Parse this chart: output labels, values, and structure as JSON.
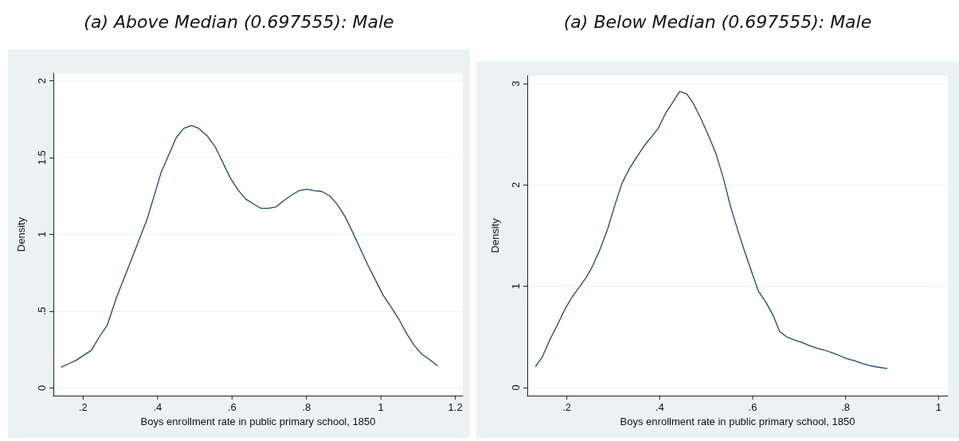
{
  "chart_data": [
    {
      "type": "line",
      "title": "(a) Above Median (0.697555): Male",
      "xlabel": "Boys enrollment rate in public primary school, 1850",
      "ylabel": "Density",
      "grid": "y",
      "marker": "none",
      "line_style": "solid",
      "xlim": [
        0.12,
        1.22
      ],
      "ylim": [
        -0.05,
        2.05
      ],
      "xticks": [
        {
          "value": 0.2,
          "label": ".2"
        },
        {
          "value": 0.4,
          "label": ".4"
        },
        {
          "value": 0.6,
          "label": ".6"
        },
        {
          "value": 0.8,
          "label": ".8"
        },
        {
          "value": 1,
          "label": "1"
        },
        {
          "value": 1.2,
          "label": "1.2"
        }
      ],
      "yticks": [
        0,
        {
          "value": 0.5,
          "label": ".5"
        },
        1,
        1.5,
        2
      ],
      "series": [
        {
          "color": "#1a476f",
          "x": [
            0.142,
            0.16,
            0.181,
            0.222,
            0.244,
            0.265,
            0.289,
            0.331,
            0.372,
            0.409,
            0.45,
            0.47,
            0.491,
            0.511,
            0.534,
            0.555,
            0.575,
            0.595,
            0.616,
            0.637,
            0.657,
            0.678,
            0.698,
            0.719,
            0.739,
            0.76,
            0.78,
            0.801,
            0.821,
            0.841,
            0.863,
            0.883,
            0.904,
            0.924,
            0.945,
            0.965,
            0.986,
            1.007,
            1.028,
            1.049,
            1.069,
            1.09,
            1.11,
            1.131,
            1.152
          ],
          "values": [
            0.136,
            0.156,
            0.18,
            0.245,
            0.335,
            0.41,
            0.585,
            0.845,
            1.1,
            1.4,
            1.63,
            1.69,
            1.71,
            1.69,
            1.64,
            1.57,
            1.47,
            1.37,
            1.29,
            1.23,
            1.2,
            1.17,
            1.17,
            1.18,
            1.22,
            1.255,
            1.285,
            1.295,
            1.285,
            1.28,
            1.25,
            1.195,
            1.115,
            1.015,
            0.905,
            0.8,
            0.7,
            0.6,
            0.525,
            0.445,
            0.355,
            0.275,
            0.22,
            0.185,
            0.145
          ]
        }
      ]
    },
    {
      "type": "line",
      "title": "(a) Below Median (0.697555): Male",
      "xlabel": "Boys enrollment rate in public primary school, 1850",
      "ylabel": "Density",
      "grid": "y",
      "marker": "none",
      "line_style": "solid",
      "xlim": [
        0.115,
        1.02
      ],
      "ylim": [
        -0.08,
        3.08
      ],
      "xticks": [
        {
          "value": 0.2,
          "label": ".2"
        },
        {
          "value": 0.4,
          "label": ".4"
        },
        {
          "value": 0.6,
          "label": ".6"
        },
        {
          "value": 0.8,
          "label": ".8"
        },
        {
          "value": 1,
          "label": "1"
        }
      ],
      "yticks": [
        0,
        1,
        2,
        3
      ],
      "series": [
        {
          "color": "#1a476f",
          "x": [
            0.133,
            0.147,
            0.163,
            0.179,
            0.195,
            0.21,
            0.226,
            0.242,
            0.256,
            0.272,
            0.288,
            0.304,
            0.319,
            0.335,
            0.351,
            0.367,
            0.383,
            0.397,
            0.413,
            0.429,
            0.443,
            0.458,
            0.472,
            0.49,
            0.506,
            0.521,
            0.537,
            0.552,
            0.568,
            0.583,
            0.599,
            0.612,
            0.629,
            0.645,
            0.658,
            0.674,
            0.69,
            0.706,
            0.722,
            0.737,
            0.754,
            0.77,
            0.787,
            0.803,
            0.819,
            0.835,
            0.851,
            0.867,
            0.889
          ],
          "values": [
            0.209,
            0.3,
            0.467,
            0.612,
            0.764,
            0.885,
            0.985,
            1.088,
            1.203,
            1.37,
            1.567,
            1.81,
            2.02,
            2.164,
            2.279,
            2.39,
            2.48,
            2.56,
            2.712,
            2.824,
            2.924,
            2.9,
            2.809,
            2.642,
            2.476,
            2.309,
            2.067,
            1.794,
            1.552,
            1.339,
            1.127,
            0.955,
            0.839,
            0.703,
            0.552,
            0.497,
            0.47,
            0.445,
            0.415,
            0.391,
            0.37,
            0.345,
            0.315,
            0.285,
            0.264,
            0.239,
            0.218,
            0.203,
            0.188
          ]
        }
      ]
    }
  ]
}
